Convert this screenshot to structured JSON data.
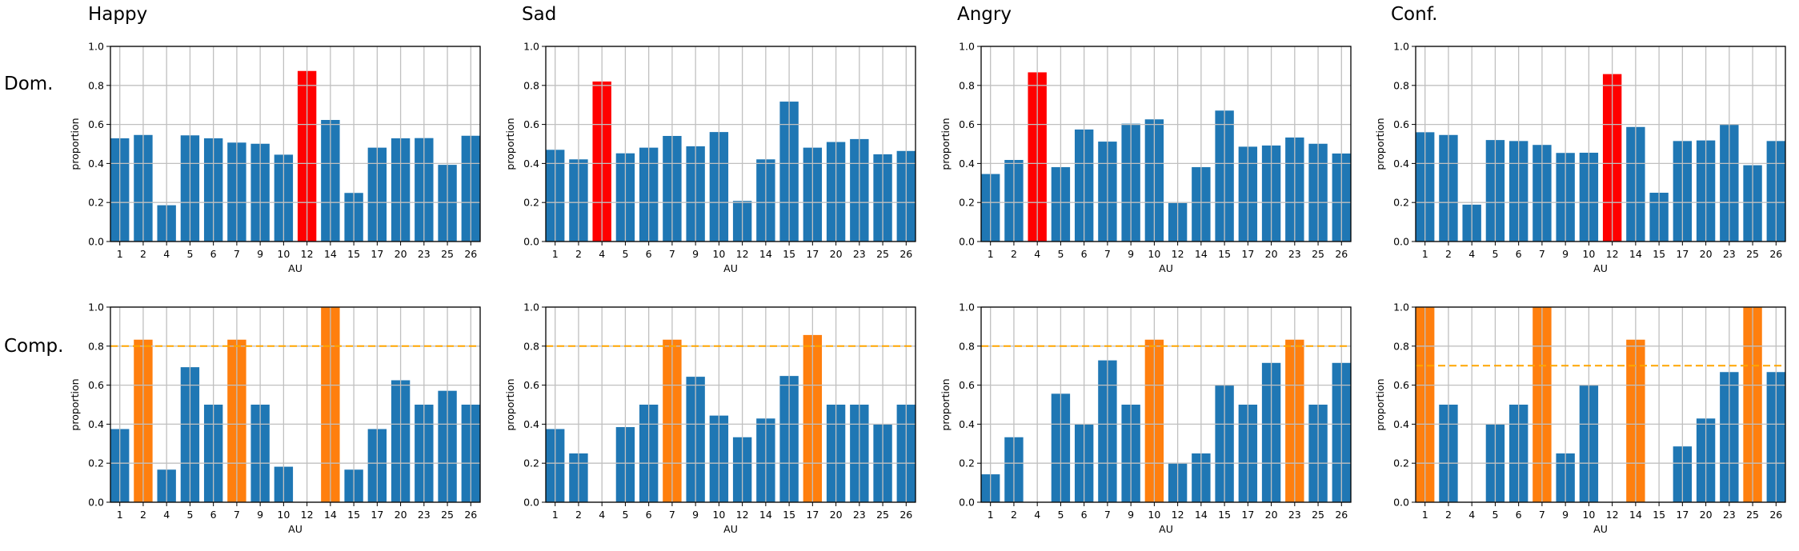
{
  "colors": {
    "bar": "#1f77b4",
    "dominant": "#ff0000",
    "above_threshold": "#ff7f0e",
    "threshold_line": "#ffa500",
    "grid": "#c0c0c0"
  },
  "column_titles": [
    "Happy",
    "Sad",
    "Angry",
    "Conf."
  ],
  "row_labels": [
    "Dom.",
    "Comp."
  ],
  "chart_data": [
    {
      "type": "bar",
      "row": 0,
      "col": 0,
      "xlabel": "AU",
      "ylabel": "proportion",
      "ylim": [
        0,
        1
      ],
      "grid": true,
      "yticks": [
        "0.0",
        "0.2",
        "0.4",
        "0.6",
        "0.8",
        "1.0"
      ],
      "categories": [
        "1",
        "2",
        "4",
        "5",
        "6",
        "7",
        "9",
        "10",
        "12",
        "14",
        "15",
        "17",
        "20",
        "23",
        "25",
        "26"
      ],
      "values": [
        0.529,
        0.546,
        0.186,
        0.544,
        0.529,
        0.507,
        0.501,
        0.445,
        0.874,
        0.623,
        0.249,
        0.481,
        0.529,
        0.53,
        0.393,
        0.542
      ],
      "highlighted": [
        "12"
      ]
    },
    {
      "type": "bar",
      "row": 0,
      "col": 1,
      "xlabel": "AU",
      "ylabel": "proportion",
      "ylim": [
        0,
        1
      ],
      "grid": true,
      "yticks": [
        "0.0",
        "0.2",
        "0.4",
        "0.6",
        "0.8",
        "1.0"
      ],
      "categories": [
        "1",
        "2",
        "4",
        "5",
        "6",
        "7",
        "9",
        "10",
        "12",
        "14",
        "15",
        "17",
        "20",
        "23",
        "25",
        "26"
      ],
      "values": [
        0.47,
        0.421,
        0.82,
        0.452,
        0.481,
        0.541,
        0.488,
        0.561,
        0.208,
        0.421,
        0.717,
        0.481,
        0.51,
        0.525,
        0.447,
        0.464
      ],
      "highlighted": [
        "4"
      ]
    },
    {
      "type": "bar",
      "row": 0,
      "col": 2,
      "xlabel": "AU",
      "ylabel": "proportion",
      "ylim": [
        0,
        1
      ],
      "grid": true,
      "yticks": [
        "0.0",
        "0.2",
        "0.4",
        "0.6",
        "0.8",
        "1.0"
      ],
      "categories": [
        "1",
        "2",
        "4",
        "5",
        "6",
        "7",
        "9",
        "10",
        "12",
        "14",
        "15",
        "17",
        "20",
        "23",
        "25",
        "26"
      ],
      "values": [
        0.346,
        0.418,
        0.867,
        0.381,
        0.574,
        0.512,
        0.604,
        0.626,
        0.197,
        0.381,
        0.671,
        0.486,
        0.492,
        0.533,
        0.501,
        0.451
      ],
      "highlighted": [
        "4"
      ]
    },
    {
      "type": "bar",
      "row": 0,
      "col": 3,
      "xlabel": "AU",
      "ylabel": "proportion",
      "ylim": [
        0,
        1
      ],
      "grid": true,
      "yticks": [
        "0.0",
        "0.2",
        "0.4",
        "0.6",
        "0.8",
        "1.0"
      ],
      "categories": [
        "1",
        "2",
        "4",
        "5",
        "6",
        "7",
        "9",
        "10",
        "12",
        "14",
        "15",
        "17",
        "20",
        "23",
        "25",
        "26"
      ],
      "values": [
        0.56,
        0.546,
        0.189,
        0.52,
        0.515,
        0.495,
        0.454,
        0.455,
        0.858,
        0.587,
        0.25,
        0.515,
        0.518,
        0.6,
        0.391,
        0.515
      ],
      "highlighted": [
        "12"
      ]
    },
    {
      "type": "bar",
      "row": 1,
      "col": 0,
      "xlabel": "AU",
      "ylabel": "proportion",
      "ylim": [
        0,
        1
      ],
      "grid": true,
      "threshold": 0.8,
      "yticks": [
        "0.0",
        "0.2",
        "0.4",
        "0.6",
        "0.8",
        "1.0"
      ],
      "categories": [
        "1",
        "2",
        "4",
        "5",
        "6",
        "7",
        "9",
        "10",
        "12",
        "14",
        "15",
        "17",
        "20",
        "23",
        "25",
        "26"
      ],
      "values": [
        0.375,
        0.833,
        0.167,
        0.692,
        0.5,
        0.833,
        0.5,
        0.182,
        0,
        1.0,
        0.167,
        0.375,
        0.625,
        0.5,
        0.571,
        0.5
      ],
      "highlighted": [
        "2",
        "7",
        "14"
      ]
    },
    {
      "type": "bar",
      "row": 1,
      "col": 1,
      "xlabel": "AU",
      "ylabel": "proportion",
      "ylim": [
        0,
        1
      ],
      "grid": true,
      "threshold": 0.8,
      "yticks": [
        "0.0",
        "0.2",
        "0.4",
        "0.6",
        "0.8",
        "1.0"
      ],
      "categories": [
        "1",
        "2",
        "4",
        "5",
        "6",
        "7",
        "9",
        "10",
        "12",
        "14",
        "15",
        "17",
        "20",
        "23",
        "25",
        "26"
      ],
      "values": [
        0.375,
        0.25,
        0,
        0.385,
        0.5,
        0.833,
        0.643,
        0.444,
        0.333,
        0.429,
        0.647,
        0.857,
        0.5,
        0.5,
        0.4,
        0.5
      ],
      "highlighted": [
        "7",
        "17"
      ]
    },
    {
      "type": "bar",
      "row": 1,
      "col": 2,
      "xlabel": "AU",
      "ylabel": "proportion",
      "ylim": [
        0,
        1
      ],
      "grid": true,
      "threshold": 0.8,
      "yticks": [
        "0.0",
        "0.2",
        "0.4",
        "0.6",
        "0.8",
        "1.0"
      ],
      "categories": [
        "1",
        "2",
        "4",
        "5",
        "6",
        "7",
        "9",
        "10",
        "12",
        "14",
        "15",
        "17",
        "20",
        "23",
        "25",
        "26"
      ],
      "values": [
        0.143,
        0.333,
        0,
        0.556,
        0.4,
        0.727,
        0.5,
        0.833,
        0.2,
        0.25,
        0.6,
        0.5,
        0.714,
        0.833,
        0.5,
        0.714
      ],
      "highlighted": [
        "10",
        "23"
      ]
    },
    {
      "type": "bar",
      "row": 1,
      "col": 3,
      "xlabel": "AU",
      "ylabel": "proportion",
      "ylim": [
        0,
        1
      ],
      "grid": true,
      "threshold": 0.7,
      "yticks": [
        "0.0",
        "0.2",
        "0.4",
        "0.6",
        "0.8",
        "1.0"
      ],
      "categories": [
        "1",
        "2",
        "4",
        "5",
        "6",
        "7",
        "9",
        "10",
        "12",
        "14",
        "15",
        "17",
        "20",
        "23",
        "25",
        "26"
      ],
      "values": [
        1.0,
        0.5,
        0,
        0.4,
        0.5,
        1.0,
        0.25,
        0.6,
        0,
        0.833,
        0,
        0.286,
        0.429,
        0.667,
        1.0,
        0.667
      ],
      "highlighted": [
        "1",
        "7",
        "14",
        "25"
      ]
    }
  ]
}
